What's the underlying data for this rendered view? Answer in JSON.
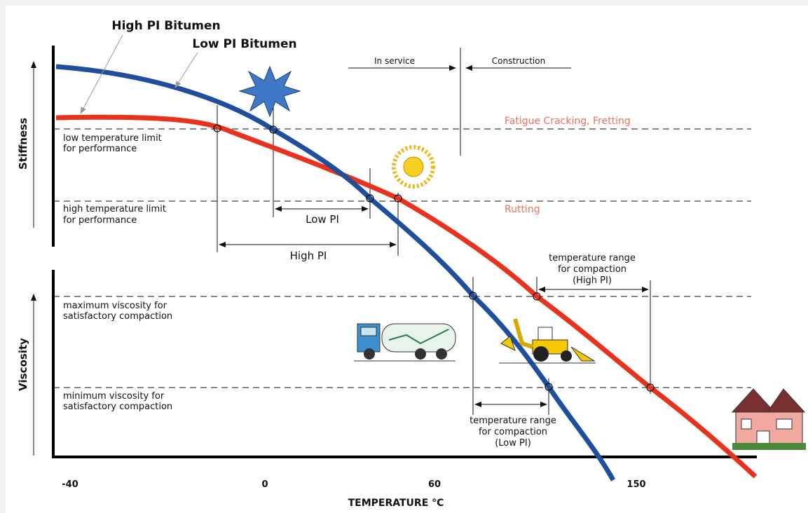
{
  "legend": {
    "high_pi": "High PI Bitumen",
    "low_pi": "Low PI Bitumen"
  },
  "axes": {
    "stiffness": "Stiffness",
    "viscosity": "Viscosity",
    "x_title": "TEMPERATURE °C",
    "x_labels": [
      "-40",
      "0",
      "60",
      "150"
    ]
  },
  "phases": {
    "in_service": "In service",
    "construction": "Construction"
  },
  "limits": {
    "low_temp": [
      "low temperature limit",
      "for performance"
    ],
    "high_temp": [
      "high temperature limit",
      "for performance"
    ],
    "max_visc": [
      "maximum viscosity for",
      "satisfactory compaction"
    ],
    "min_visc": [
      "minimum viscosity for",
      "satisfactory compaction"
    ]
  },
  "failures": {
    "fatigue": "Fatigue Cracking, Fretting",
    "rutting": "Rutting"
  },
  "ranges": {
    "low_pi": "Low PI",
    "high_pi": "High PI",
    "compaction_high": [
      "temperature range",
      "for compaction",
      "(High PI)"
    ],
    "compaction_low": [
      "temperature range",
      "for compaction",
      "(Low PI)"
    ]
  }
}
